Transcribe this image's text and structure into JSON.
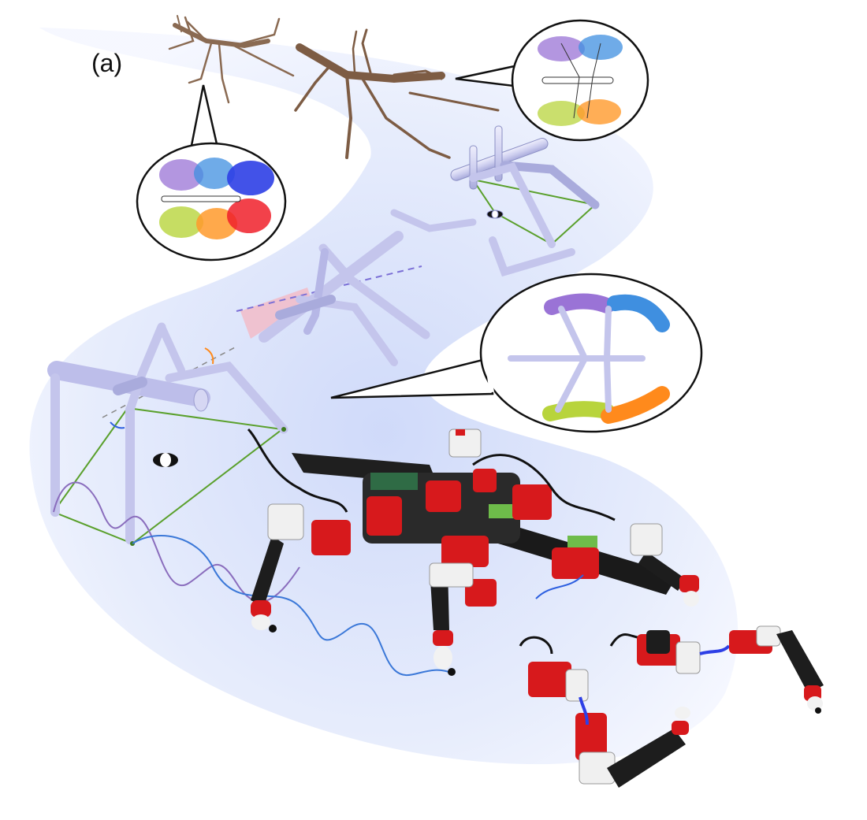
{
  "figure": {
    "panel_label": "(a)"
  },
  "colors": {
    "background_swoosh": "#dfe6fb",
    "tube": "#cfd0f0",
    "tube_outline": "#8b8fc4",
    "support_polygon": "#5aa02c",
    "purple_trace": "#8a6dbd",
    "blue_trace": "#3b78d8",
    "robot_red": "#d7191c",
    "robot_black": "#1d1d1d",
    "leg_purple": "#9a73d6",
    "leg_blue": "#3f8fe0",
    "leg_green": "#b8d43c",
    "leg_orange": "#ff8a1c",
    "leg_dark_blue": "#2d3fe6",
    "leg_red": "#f0202a",
    "twig_brown": "#8a6a52",
    "dashed_axis": "#7b6fd6",
    "wedge_pink": "#f6b3bd"
  }
}
